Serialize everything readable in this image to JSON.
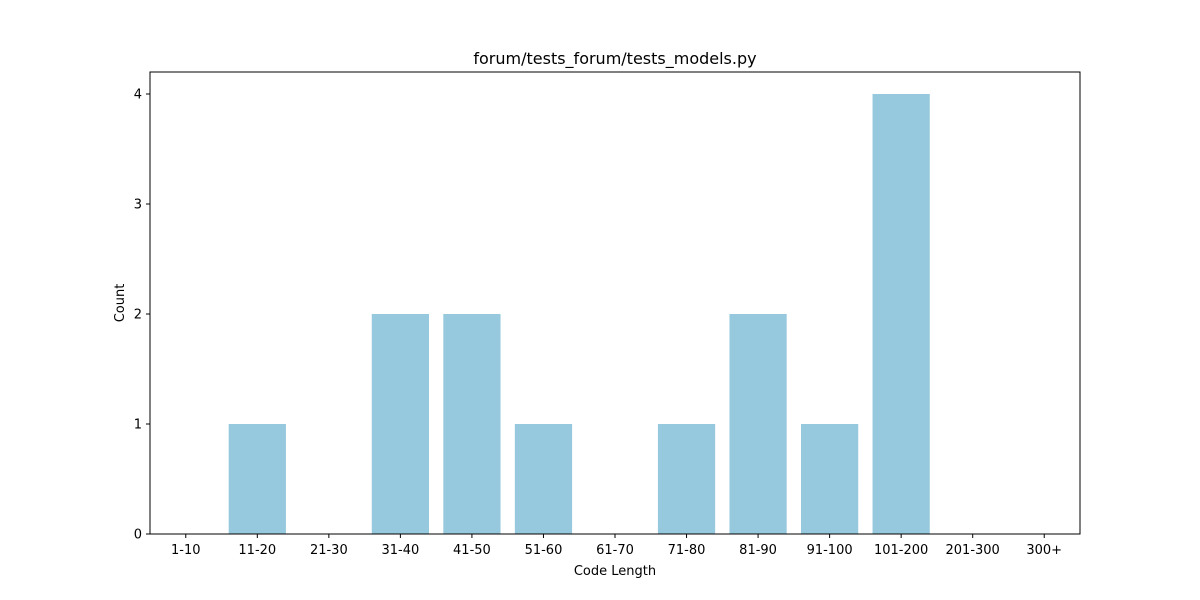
{
  "chart_data": {
    "type": "bar",
    "title": "forum/tests_forum/tests_models.py",
    "xlabel": "Code Length",
    "ylabel": "Count",
    "categories": [
      "1-10",
      "11-20",
      "21-30",
      "31-40",
      "41-50",
      "51-60",
      "61-70",
      "71-80",
      "81-90",
      "91-100",
      "101-200",
      "201-300",
      "300+"
    ],
    "values": [
      0,
      1,
      0,
      2,
      2,
      1,
      0,
      1,
      2,
      1,
      4,
      0,
      0
    ],
    "ylim": [
      0,
      4.2
    ],
    "yticks": [
      0,
      1,
      2,
      3,
      4
    ],
    "bar_color": "#96c9dd",
    "grid": false,
    "legend": "none"
  }
}
